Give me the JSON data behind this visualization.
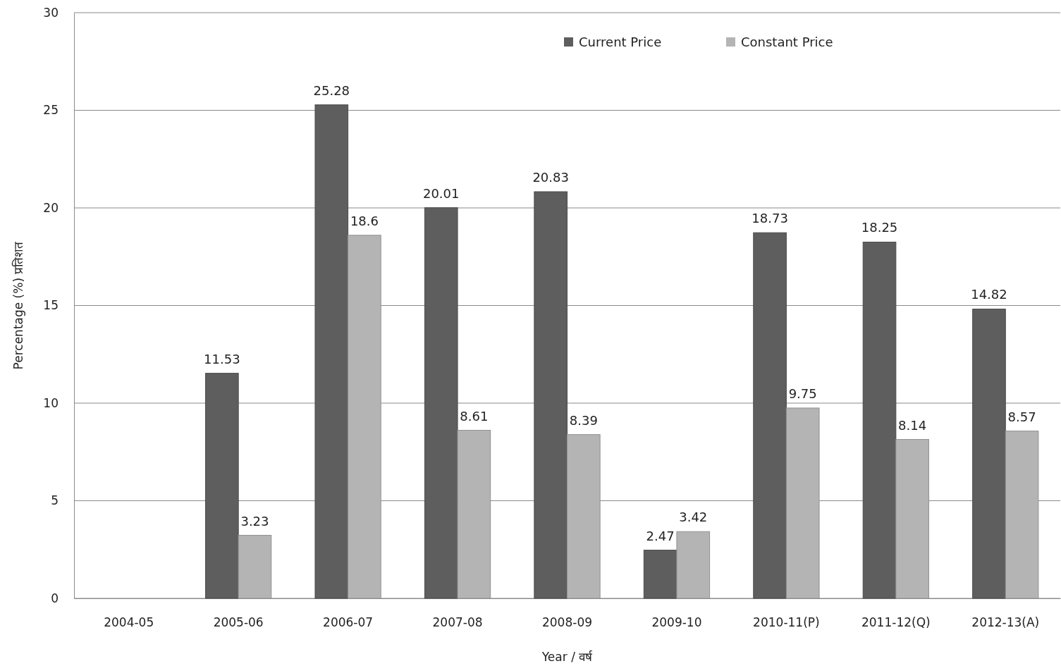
{
  "chart_data": {
    "type": "bar",
    "xlabel": "Year / वर्ष",
    "ylabel": "Percentage (%) प्रतिशत",
    "categories": [
      "2004-05",
      "2005-06",
      "2006-07",
      "2007-08",
      "2008-09",
      "2009-10",
      "2010-11(P)",
      "2011-12(Q)",
      "2012-13(A)"
    ],
    "series": [
      {
        "name": "Current Price",
        "color": "#5e5e5e",
        "values": [
          null,
          11.53,
          25.28,
          20.01,
          20.83,
          2.47,
          18.73,
          18.25,
          14.82
        ]
      },
      {
        "name": "Constant Price",
        "color": "#b4b4b4",
        "values": [
          null,
          3.23,
          18.6,
          8.61,
          8.39,
          3.42,
          9.75,
          8.14,
          8.57
        ]
      }
    ],
    "ylim": [
      0,
      30
    ],
    "yticks": [
      0,
      5,
      10,
      15,
      20,
      25,
      30
    ],
    "grid": "y",
    "legend": "top right",
    "data_labels": true
  }
}
